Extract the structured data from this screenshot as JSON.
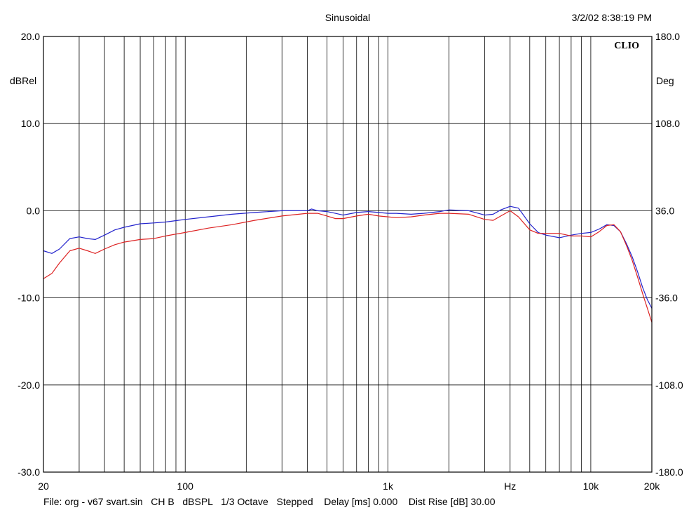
{
  "header": {
    "title": "Sinusoidal",
    "timestamp": "3/2/02 8:38:19 PM"
  },
  "footer": {
    "text": "File: org - v67 svart.sin   CH B   dBSPL   1/3 Octave   Stepped    Delay [ms] 0.000    Dist Rise [dB] 30.00"
  },
  "chart_data": {
    "type": "line",
    "brand": "CLIO",
    "xlabel": "Hz",
    "ylabel": "dBRel",
    "y2label": "Deg",
    "xscale": "log",
    "xlim": [
      20,
      20000
    ],
    "ylim": [
      -30,
      20
    ],
    "y2lim": [
      -180,
      180
    ],
    "grid": true,
    "x_tick_labels": [
      {
        "value": 20,
        "label": "20"
      },
      {
        "value": 100,
        "label": "100"
      },
      {
        "value": 1000,
        "label": "1k"
      },
      {
        "value": 10000,
        "label": "10k"
      },
      {
        "value": 20000,
        "label": "20k"
      }
    ],
    "y_ticks": [
      {
        "value": 20,
        "label": "20.0"
      },
      {
        "value": 10,
        "label": "10.0"
      },
      {
        "value": 0,
        "label": "0.0"
      },
      {
        "value": -10,
        "label": "-10.0"
      },
      {
        "value": -20,
        "label": "-20.0"
      },
      {
        "value": -30,
        "label": "-30.0"
      }
    ],
    "y2_ticks": [
      {
        "value": 180,
        "label": "180.0"
      },
      {
        "value": 108,
        "label": "108.0"
      },
      {
        "value": 36,
        "label": "36.0"
      },
      {
        "value": -36,
        "label": "-36.0"
      },
      {
        "value": -108,
        "label": "-108.0"
      },
      {
        "value": -180,
        "label": "-180.0"
      }
    ],
    "series": [
      {
        "color": "#2222cc",
        "points": [
          [
            20,
            -4.6
          ],
          [
            22,
            -4.9
          ],
          [
            24,
            -4.4
          ],
          [
            27,
            -3.2
          ],
          [
            30,
            -3.0
          ],
          [
            33,
            -3.2
          ],
          [
            36,
            -3.3
          ],
          [
            40,
            -2.8
          ],
          [
            45,
            -2.2
          ],
          [
            50,
            -1.9
          ],
          [
            60,
            -1.5
          ],
          [
            70,
            -1.4
          ],
          [
            80,
            -1.3
          ],
          [
            100,
            -1.0
          ],
          [
            130,
            -0.7
          ],
          [
            170,
            -0.4
          ],
          [
            220,
            -0.2
          ],
          [
            300,
            0.0
          ],
          [
            400,
            0.0
          ],
          [
            420,
            0.2
          ],
          [
            450,
            0.0
          ],
          [
            500,
            -0.1
          ],
          [
            550,
            -0.3
          ],
          [
            600,
            -0.5
          ],
          [
            700,
            -0.2
          ],
          [
            800,
            -0.1
          ],
          [
            900,
            -0.2
          ],
          [
            1000,
            -0.3
          ],
          [
            1100,
            -0.3
          ],
          [
            1300,
            -0.4
          ],
          [
            1500,
            -0.3
          ],
          [
            1800,
            -0.1
          ],
          [
            2000,
            0.1
          ],
          [
            2500,
            0.0
          ],
          [
            3000,
            -0.5
          ],
          [
            3300,
            -0.4
          ],
          [
            3600,
            0.1
          ],
          [
            4000,
            0.5
          ],
          [
            4400,
            0.3
          ],
          [
            5000,
            -1.5
          ],
          [
            5500,
            -2.5
          ],
          [
            6000,
            -2.8
          ],
          [
            7000,
            -3.1
          ],
          [
            8000,
            -2.8
          ],
          [
            9000,
            -2.6
          ],
          [
            10000,
            -2.5
          ],
          [
            11000,
            -2.1
          ],
          [
            12000,
            -1.6
          ],
          [
            13000,
            -1.7
          ],
          [
            14000,
            -2.4
          ],
          [
            15000,
            -3.8
          ],
          [
            16000,
            -5.3
          ],
          [
            17000,
            -7.0
          ],
          [
            18000,
            -8.8
          ],
          [
            19000,
            -10.2
          ],
          [
            20000,
            -11.2
          ]
        ]
      },
      {
        "color": "#dd2222",
        "points": [
          [
            20,
            -7.8
          ],
          [
            22,
            -7.2
          ],
          [
            24,
            -6.0
          ],
          [
            27,
            -4.6
          ],
          [
            30,
            -4.3
          ],
          [
            33,
            -4.6
          ],
          [
            36,
            -4.9
          ],
          [
            40,
            -4.4
          ],
          [
            45,
            -3.9
          ],
          [
            50,
            -3.6
          ],
          [
            60,
            -3.3
          ],
          [
            70,
            -3.2
          ],
          [
            80,
            -2.9
          ],
          [
            100,
            -2.5
          ],
          [
            130,
            -2.0
          ],
          [
            170,
            -1.6
          ],
          [
            220,
            -1.1
          ],
          [
            300,
            -0.6
          ],
          [
            400,
            -0.3
          ],
          [
            450,
            -0.3
          ],
          [
            500,
            -0.6
          ],
          [
            550,
            -0.9
          ],
          [
            600,
            -0.9
          ],
          [
            700,
            -0.6
          ],
          [
            800,
            -0.4
          ],
          [
            900,
            -0.6
          ],
          [
            1000,
            -0.7
          ],
          [
            1100,
            -0.8
          ],
          [
            1300,
            -0.7
          ],
          [
            1500,
            -0.5
          ],
          [
            1800,
            -0.3
          ],
          [
            2000,
            -0.3
          ],
          [
            2500,
            -0.4
          ],
          [
            3000,
            -1.0
          ],
          [
            3300,
            -1.1
          ],
          [
            3600,
            -0.6
          ],
          [
            4000,
            0.0
          ],
          [
            4400,
            -0.7
          ],
          [
            5000,
            -2.2
          ],
          [
            5500,
            -2.6
          ],
          [
            6000,
            -2.6
          ],
          [
            7000,
            -2.6
          ],
          [
            8000,
            -2.9
          ],
          [
            9000,
            -2.9
          ],
          [
            10000,
            -3.0
          ],
          [
            11000,
            -2.4
          ],
          [
            12000,
            -1.7
          ],
          [
            13000,
            -1.6
          ],
          [
            14000,
            -2.4
          ],
          [
            15000,
            -4.0
          ],
          [
            16000,
            -5.7
          ],
          [
            17000,
            -7.6
          ],
          [
            18000,
            -9.5
          ],
          [
            19000,
            -11.2
          ],
          [
            20000,
            -12.8
          ]
        ]
      }
    ]
  }
}
